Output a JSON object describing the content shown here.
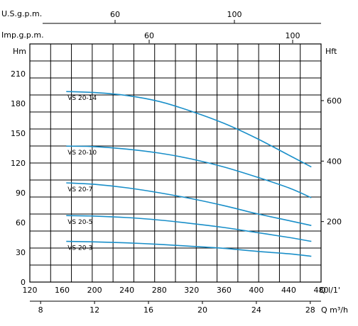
{
  "chart_data": {
    "type": "line",
    "grid": true,
    "axes": {
      "top_us": {
        "label": "U.S.g.p.m.",
        "ticks": [
          60,
          100
        ],
        "tick_labels": [
          "60",
          "100"
        ]
      },
      "top_imp": {
        "label": "Imp.g.p.m.",
        "ticks": [
          60,
          100
        ],
        "tick_labels": [
          "60",
          "100"
        ]
      },
      "left": {
        "label": "Hm",
        "range": [
          0,
          240
        ],
        "ticks": [
          0,
          30,
          60,
          90,
          120,
          150,
          180,
          210
        ],
        "tick_labels": [
          "0",
          "30",
          "60",
          "90",
          "120",
          "150",
          "180",
          "210"
        ]
      },
      "right": {
        "label": "Hft",
        "ticks": [
          200,
          400,
          600
        ],
        "tick_labels": [
          "200",
          "400",
          "600"
        ]
      },
      "bottom_lmin": {
        "label": "Q l/1'",
        "range": [
          120,
          480
        ],
        "ticks": [
          120,
          160,
          200,
          240,
          280,
          320,
          360,
          400,
          440,
          480
        ],
        "tick_labels": [
          "120",
          "160",
          "200",
          "240",
          "280",
          "320",
          "360",
          "400",
          "440",
          "480"
        ]
      },
      "bottom_m3h": {
        "label": "Q m³/h",
        "ticks": [
          8,
          12,
          16,
          20,
          24,
          28
        ],
        "tick_labels": [
          "8",
          "12",
          "16",
          "20",
          "24",
          "28"
        ]
      }
    },
    "series": [
      {
        "name": "VS 20-14",
        "x": [
          165,
          200,
          240,
          280,
          320,
          360,
          400,
          440,
          468
        ],
        "y": [
          192,
          191,
          188,
          182,
          172,
          160,
          145,
          128,
          116
        ],
        "color": "#1a8fc9"
      },
      {
        "name": "VS 20-10",
        "x": [
          165,
          200,
          240,
          280,
          320,
          360,
          400,
          440,
          468
        ],
        "y": [
          137,
          136.5,
          134,
          130,
          124,
          116,
          106,
          95,
          85
        ],
        "color": "#1a8fc9"
      },
      {
        "name": "VS 20-7",
        "x": [
          165,
          200,
          240,
          280,
          320,
          360,
          400,
          440,
          468
        ],
        "y": [
          100,
          98.5,
          95,
          90,
          84,
          77,
          69,
          62,
          57
        ],
        "color": "#1a8fc9"
      },
      {
        "name": "VS 20-5",
        "x": [
          165,
          200,
          240,
          280,
          320,
          360,
          400,
          440,
          468
        ],
        "y": [
          67,
          66.5,
          65,
          62.5,
          59,
          55,
          50,
          45,
          41
        ],
        "color": "#1a8fc9"
      },
      {
        "name": "VS 20-3",
        "x": [
          165,
          200,
          240,
          280,
          320,
          360,
          400,
          440,
          468
        ],
        "y": [
          41,
          40.5,
          39.5,
          38,
          36,
          34,
          31,
          28.5,
          26
        ],
        "color": "#1a8fc9"
      }
    ]
  }
}
